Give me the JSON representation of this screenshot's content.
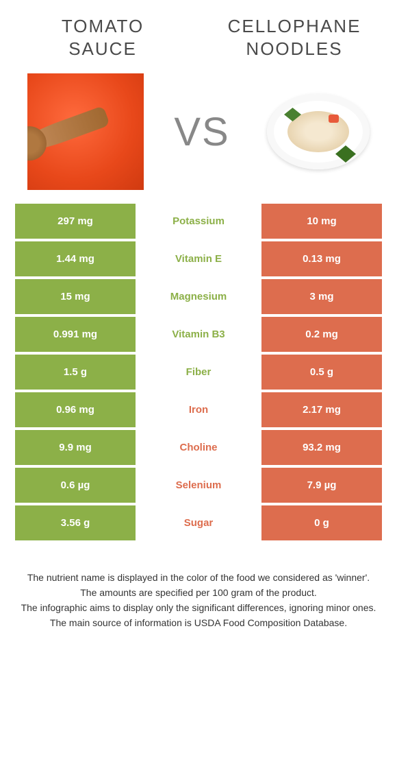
{
  "colors": {
    "green": "#8cb048",
    "orange": "#dd6d4e",
    "text_dark": "#4a4a4a"
  },
  "header": {
    "left_title_line1": "TOMATO",
    "left_title_line2": "SAUCE",
    "right_title_line1": "CELLOPHANE",
    "right_title_line2": "NOODLES",
    "vs_label": "VS"
  },
  "rows": [
    {
      "left": "297 mg",
      "name": "Potassium",
      "right": "10 mg",
      "winner": "left"
    },
    {
      "left": "1.44 mg",
      "name": "Vitamin E",
      "right": "0.13 mg",
      "winner": "left"
    },
    {
      "left": "15 mg",
      "name": "Magnesium",
      "right": "3 mg",
      "winner": "left"
    },
    {
      "left": "0.991 mg",
      "name": "Vitamin B3",
      "right": "0.2 mg",
      "winner": "left"
    },
    {
      "left": "1.5 g",
      "name": "Fiber",
      "right": "0.5 g",
      "winner": "left"
    },
    {
      "left": "0.96 mg",
      "name": "Iron",
      "right": "2.17 mg",
      "winner": "right"
    },
    {
      "left": "9.9 mg",
      "name": "Choline",
      "right": "93.2 mg",
      "winner": "right"
    },
    {
      "left": "0.6 µg",
      "name": "Selenium",
      "right": "7.9 µg",
      "winner": "right"
    },
    {
      "left": "3.56 g",
      "name": "Sugar",
      "right": "0 g",
      "winner": "right"
    }
  ],
  "footnotes": [
    "The nutrient name is displayed in the color of the food we considered as 'winner'.",
    "The amounts are specified per 100 gram of the product.",
    "The infographic aims to display only the significant differences, ignoring minor ones.",
    "The main source of information is USDA Food Composition Database."
  ]
}
